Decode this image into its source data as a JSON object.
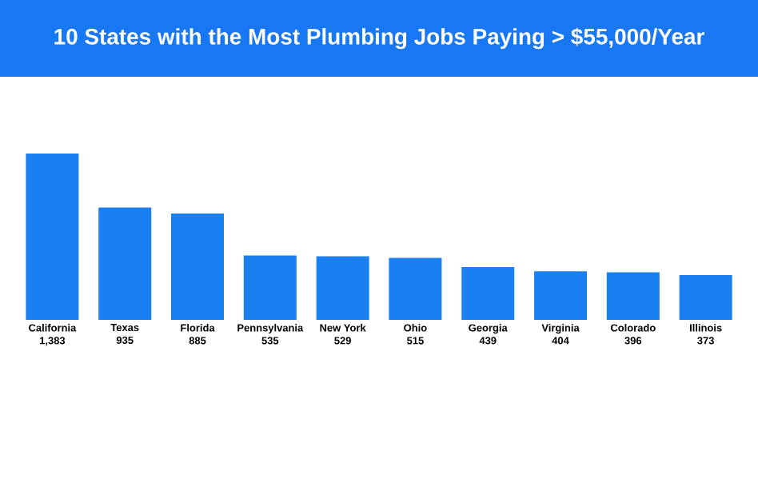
{
  "chart_data": {
    "type": "bar",
    "title": "10 States with the Most Plumbing Jobs Paying > $55,000/Year",
    "categories": [
      "California",
      "Texas",
      "Florida",
      "Pennsylvania",
      "New York",
      "Ohio",
      "Georgia",
      "Virginia",
      "Colorado",
      "Illinois"
    ],
    "values": [
      1383,
      935,
      885,
      535,
      529,
      515,
      439,
      404,
      396,
      373
    ],
    "value_labels": [
      "1,383",
      "935",
      "885",
      "535",
      "529",
      "515",
      "439",
      "404",
      "396",
      "373"
    ],
    "color": "#1a7ff0"
  }
}
